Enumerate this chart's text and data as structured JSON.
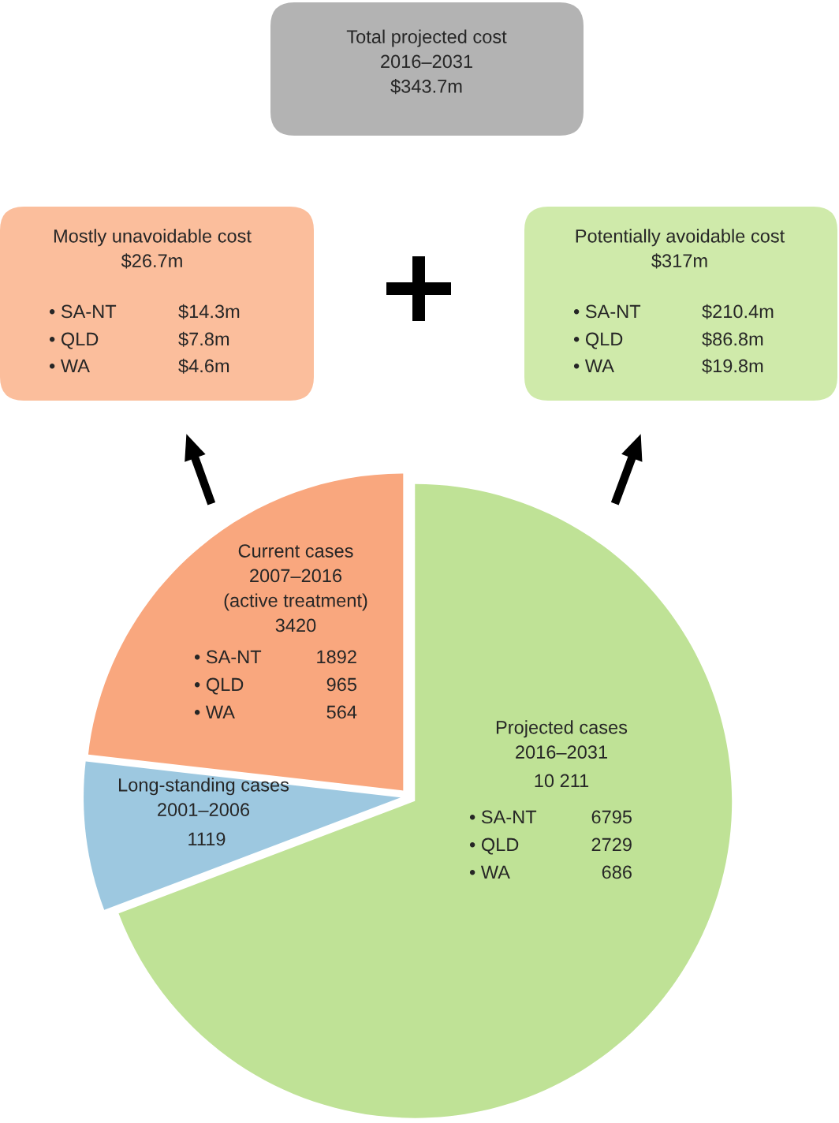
{
  "chart_data": {
    "type": "pie",
    "categories": [
      "Projected cases\n2016–2031",
      "Long-standing cases\n2001–2006",
      "Current cases\n2007–2016\n(active treatment)"
    ],
    "values": [
      10211,
      1119,
      3420
    ],
    "value_labels": [
      "10 211",
      "1119",
      "3420"
    ],
    "colors": [
      "#bfe296",
      "#9dc8e0",
      "#f9a77e"
    ],
    "annotations": [
      "Total projected cost\n2016–2031\n$343.7m",
      "Mostly unavoidable cost\n$26.7m",
      "• SA-NT",
      "$14.3m",
      "• QLD",
      "$7.8m",
      "• WA",
      "$4.6m",
      "Potentially avoidable cost\n$317m",
      "• SA-NT",
      "$210.4m",
      "• QLD",
      "$86.8m",
      "• WA",
      "$19.8m",
      "• SA-NT",
      "1892",
      "• QLD",
      "965",
      "• WA",
      "564",
      "• SA-NT",
      "6795",
      "• QLD",
      "2729",
      "• WA",
      "686"
    ]
  }
}
